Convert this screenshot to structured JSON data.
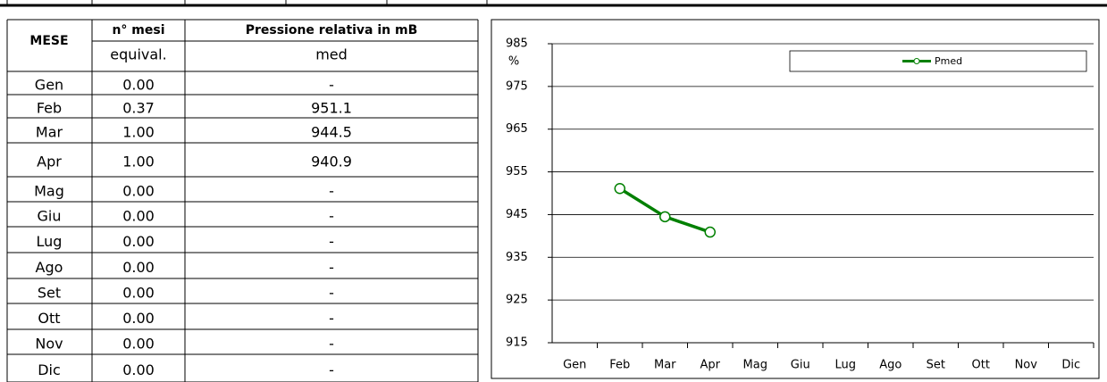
{
  "table": {
    "header": {
      "mese": "MESE",
      "mesi": "n° mesi",
      "pressione": "Pressione relativa in mB",
      "mesi_sub": "equival.",
      "pressione_sub": "med"
    },
    "rows": [
      [
        "Gen",
        "0.00",
        "-"
      ],
      [
        "Feb",
        "0.37",
        "951.1"
      ],
      [
        "Mar",
        "1.00",
        "944.5"
      ],
      [
        "Apr",
        "1.00",
        "940.9"
      ],
      [
        "Mag",
        "0.00",
        "-"
      ],
      [
        "Giu",
        "0.00",
        "-"
      ],
      [
        "Lug",
        "0.00",
        "-"
      ],
      [
        "Ago",
        "0.00",
        "-"
      ],
      [
        "Set",
        "0.00",
        "-"
      ],
      [
        "Ott",
        "0.00",
        "-"
      ],
      [
        "Nov",
        "0.00",
        "-"
      ],
      [
        "Dic",
        "0.00",
        "-"
      ]
    ]
  },
  "chart_data": {
    "type": "line",
    "y_unit": "%",
    "categories": [
      "Gen",
      "Feb",
      "Mar",
      "Apr",
      "Mag",
      "Giu",
      "Lug",
      "Ago",
      "Set",
      "Ott",
      "Nov",
      "Dic"
    ],
    "series": [
      {
        "name": "Pmed",
        "color": "#008000",
        "values": [
          null,
          951.1,
          944.5,
          940.9,
          null,
          null,
          null,
          null,
          null,
          null,
          null,
          null
        ]
      }
    ],
    "ylim": [
      915,
      985
    ],
    "yticks": [
      915,
      925,
      935,
      945,
      955,
      965,
      975,
      985
    ],
    "grid": true,
    "legend": "top-right"
  }
}
